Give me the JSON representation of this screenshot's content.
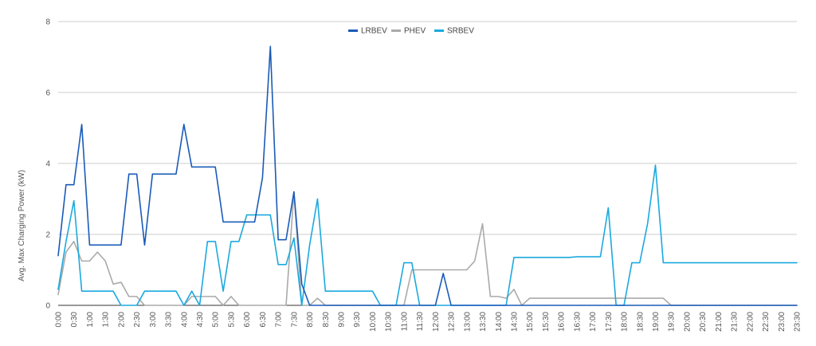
{
  "chart_data": {
    "type": "line",
    "title": "",
    "xlabel": "",
    "ylabel": "Avg. Max Charging Power (kW)",
    "ylim": [
      0,
      8
    ],
    "yticks": [
      "0",
      "2",
      "4",
      "6",
      "8"
    ],
    "grid": true,
    "legend_position": "top-center",
    "x": [
      "0:00",
      "0:15",
      "0:30",
      "0:45",
      "1:00",
      "1:15",
      "1:30",
      "1:45",
      "2:00",
      "2:15",
      "2:30",
      "2:45",
      "3:00",
      "3:15",
      "3:30",
      "3:45",
      "4:00",
      "4:15",
      "4:30",
      "4:45",
      "5:00",
      "5:15",
      "5:30",
      "5:45",
      "6:00",
      "6:15",
      "6:30",
      "6:45",
      "7:00",
      "7:15",
      "7:30",
      "7:45",
      "8:00",
      "8:15",
      "8:30",
      "8:45",
      "9:00",
      "9:15",
      "9:30",
      "9:45",
      "10:00",
      "10:15",
      "10:30",
      "10:45",
      "11:00",
      "11:15",
      "11:30",
      "11:45",
      "12:00",
      "12:15",
      "12:30",
      "12:45",
      "13:00",
      "13:15",
      "13:30",
      "13:45",
      "14:00",
      "14:15",
      "14:30",
      "14:45",
      "15:00",
      "15:15",
      "15:30",
      "15:45",
      "16:00",
      "16:15",
      "16:30",
      "16:45",
      "17:00",
      "17:15",
      "17:30",
      "17:45",
      "18:00",
      "18:15",
      "18:30",
      "18:45",
      "19:00",
      "19:15",
      "19:30",
      "19:45",
      "20:00",
      "20:15",
      "20:30",
      "20:45",
      "21:00",
      "21:15",
      "21:30",
      "21:45",
      "22:00",
      "22:15",
      "22:30",
      "22:45",
      "23:00",
      "23:15",
      "23:30"
    ],
    "xtick_labels": [
      "0:00",
      "0:30",
      "1:00",
      "1:30",
      "2:00",
      "2:30",
      "3:00",
      "3:30",
      "4:00",
      "4:30",
      "5:00",
      "5:30",
      "6:00",
      "6:30",
      "7:00",
      "7:30",
      "8:00",
      "8:30",
      "9:00",
      "9:30",
      "10:00",
      "10:30",
      "11:00",
      "11:30",
      "12:00",
      "12:30",
      "13:00",
      "13:30",
      "14:00",
      "14:30",
      "15:00",
      "15:30",
      "16:00",
      "16:30",
      "17:00",
      "17:30",
      "18:00",
      "18:30",
      "19:00",
      "19:30",
      "20:00",
      "20:30",
      "21:00",
      "21:30",
      "22:00",
      "22:30",
      "23:00",
      "23:30"
    ],
    "series": [
      {
        "name": "LRBEV",
        "color": "#1a5bb8",
        "values": [
          1.4,
          3.4,
          3.4,
          5.1,
          1.7,
          1.7,
          1.7,
          1.7,
          1.7,
          3.7,
          3.7,
          1.7,
          3.7,
          3.7,
          3.7,
          3.7,
          5.1,
          3.9,
          3.9,
          3.9,
          3.9,
          2.35,
          2.35,
          2.35,
          2.35,
          2.35,
          3.6,
          7.3,
          1.85,
          1.85,
          3.2,
          0.6,
          0,
          0,
          0,
          0,
          0,
          0,
          0,
          0,
          0,
          0,
          0,
          0,
          0,
          0,
          0,
          0,
          0,
          0.9,
          0,
          0,
          0,
          0,
          0,
          0,
          0,
          0,
          0,
          0,
          0,
          0,
          0,
          0,
          0,
          0,
          0,
          0,
          0,
          0,
          0,
          0,
          0,
          0,
          0,
          0,
          0,
          0,
          0,
          0,
          0,
          0,
          0,
          0,
          0,
          0,
          0,
          0,
          0,
          0,
          0,
          0,
          0,
          0,
          0
        ]
      },
      {
        "name": "PHEV",
        "color": "#aaaaaa",
        "values": [
          0.3,
          1.5,
          1.8,
          1.25,
          1.25,
          1.5,
          1.25,
          0.6,
          0.65,
          0.25,
          0.25,
          0,
          0,
          0,
          0,
          0,
          0,
          0.25,
          0.25,
          0.25,
          0.25,
          0,
          0.25,
          0,
          0,
          0,
          0,
          0,
          0,
          0,
          3.2,
          0,
          0,
          0.2,
          0,
          0,
          0,
          0,
          0,
          0,
          0,
          0,
          0,
          0,
          0,
          1.0,
          1.0,
          1.0,
          1.0,
          1.0,
          1.0,
          1.0,
          1.0,
          1.25,
          2.3,
          0.25,
          0.25,
          0.2,
          0.45,
          0,
          0.2,
          0.2,
          0.2,
          0.2,
          0.2,
          0.2,
          0.2,
          0.2,
          0.2,
          0.2,
          0.2,
          0.2,
          0.2,
          0.2,
          0.2,
          0.2,
          0.2,
          0.2,
          0,
          0,
          0,
          0,
          0,
          0,
          0,
          0,
          0,
          0,
          0,
          0,
          0,
          0,
          0,
          0,
          0
        ]
      },
      {
        "name": "SRBEV",
        "color": "#1ba9de",
        "values": [
          0.45,
          1.8,
          2.95,
          0.4,
          0.4,
          0.4,
          0.4,
          0.4,
          0,
          0,
          0,
          0.4,
          0.4,
          0.4,
          0.4,
          0.4,
          0,
          0.4,
          0,
          1.8,
          1.8,
          0.4,
          1.8,
          1.8,
          2.55,
          2.55,
          2.55,
          2.55,
          1.15,
          1.15,
          1.9,
          0,
          1.7,
          3.0,
          0.4,
          0.4,
          0.4,
          0.4,
          0.4,
          0.4,
          0.4,
          0,
          0,
          0,
          1.2,
          1.2,
          0,
          0,
          0,
          0,
          0,
          0,
          0,
          0,
          0,
          0,
          0,
          0,
          1.35,
          1.35,
          1.35,
          1.35,
          1.35,
          1.35,
          1.35,
          1.35,
          1.37,
          1.37,
          1.37,
          1.37,
          2.75,
          0,
          0,
          1.2,
          1.2,
          2.3,
          3.95,
          1.2,
          1.2,
          1.2,
          1.2,
          1.2,
          1.2,
          1.2,
          1.2,
          1.2,
          1.2,
          1.2,
          1.2,
          1.2,
          1.2,
          1.2,
          1.2,
          1.2,
          1.2
        ]
      }
    ]
  }
}
